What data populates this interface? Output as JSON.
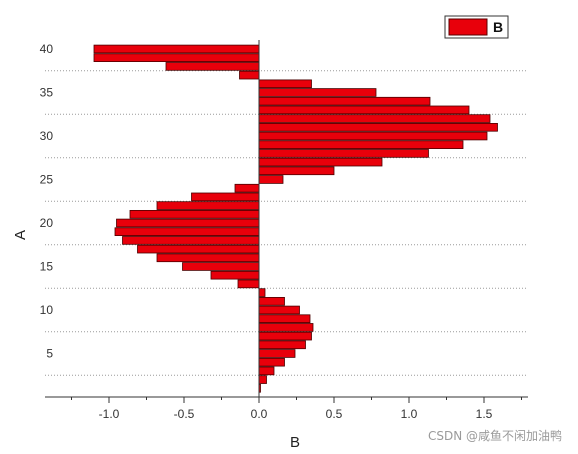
{
  "chart_data": {
    "type": "bar",
    "orientation": "horizontal",
    "xlabel": "B",
    "ylabel": "A",
    "xlim": [
      -1.3,
      1.8
    ],
    "ylim": [
      0,
      41
    ],
    "x_ticks": [
      "-1.0",
      "-0.5",
      "0.0",
      "0.5",
      "1.0",
      "1.5"
    ],
    "x_tick_values": [
      -1.0,
      -0.5,
      0.0,
      0.5,
      1.0,
      1.5
    ],
    "y_ticks": [
      "5",
      "10",
      "15",
      "20",
      "25",
      "30",
      "35",
      "40"
    ],
    "y_tick_values": [
      5,
      10,
      15,
      20,
      25,
      30,
      35,
      40
    ],
    "grid": "horizontal-dotted",
    "legend_position": "top-right",
    "series": [
      {
        "name": "B",
        "color": "#e8000b",
        "categories": [
          1,
          2,
          3,
          4,
          5,
          6,
          7,
          8,
          9,
          10,
          11,
          12,
          13,
          14,
          15,
          16,
          17,
          18,
          19,
          20,
          21,
          22,
          23,
          24,
          25,
          26,
          27,
          28,
          29,
          30,
          31,
          32,
          33,
          34,
          35,
          36,
          37,
          38,
          39,
          40
        ],
        "values": [
          0.01,
          0.05,
          0.1,
          0.17,
          0.24,
          0.31,
          0.35,
          0.36,
          0.34,
          0.27,
          0.17,
          0.04,
          -0.14,
          -0.32,
          -0.51,
          -0.68,
          -0.81,
          -0.91,
          -0.96,
          -0.95,
          -0.86,
          -0.68,
          -0.45,
          -0.16,
          0.16,
          0.5,
          0.82,
          1.13,
          1.36,
          1.52,
          1.59,
          1.54,
          1.4,
          1.14,
          0.78,
          0.35,
          -0.13,
          -0.62,
          -1.1,
          -1.1
        ]
      }
    ]
  },
  "legend": {
    "label": "B",
    "swatch_color": "#e8000b"
  },
  "watermark": "CSDN @咸鱼不闲加油鸭"
}
